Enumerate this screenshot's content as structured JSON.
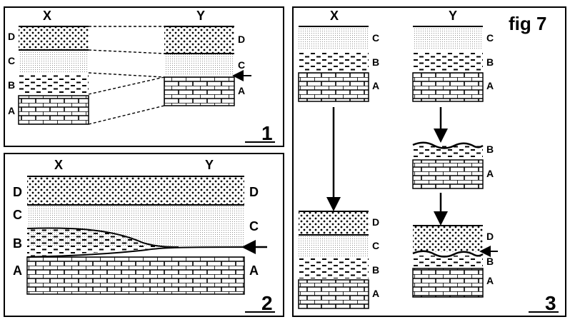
{
  "figure_label": "fig 7",
  "columns": {
    "left": "X",
    "right": "Y"
  },
  "layers": {
    "A": "A",
    "B": "B",
    "C": "C",
    "D": "D"
  },
  "panels": [
    {
      "number": "1"
    },
    {
      "number": "2"
    },
    {
      "number": "3"
    }
  ],
  "layer_patterns": {
    "A": "brick",
    "B": "dashes",
    "C": "fine-stipple",
    "D": "coarse-dots"
  },
  "colors": {
    "ink": "#000000",
    "background": "#ffffff",
    "stipple": "#6f6f6f"
  }
}
